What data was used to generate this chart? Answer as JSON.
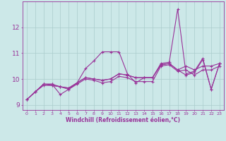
{
  "xlabel": "Windchill (Refroidissement éolien,°C)",
  "background_color": "#cce8e8",
  "grid_color": "#aacccc",
  "line_color": "#993399",
  "xlim": [
    -0.5,
    23.5
  ],
  "ylim": [
    8.8,
    13.0
  ],
  "xticks": [
    0,
    1,
    2,
    3,
    4,
    5,
    6,
    7,
    8,
    9,
    10,
    11,
    12,
    13,
    14,
    15,
    16,
    17,
    18,
    19,
    20,
    21,
    22,
    23
  ],
  "yticks": [
    9,
    10,
    11,
    12
  ],
  "series": [
    [
      9.2,
      9.5,
      9.8,
      9.8,
      9.4,
      9.6,
      9.85,
      10.4,
      10.7,
      11.05,
      11.05,
      11.05,
      10.2,
      9.85,
      10.05,
      10.05,
      10.6,
      10.65,
      12.7,
      10.2,
      10.3,
      10.8,
      9.6,
      10.6
    ],
    [
      9.2,
      9.5,
      9.8,
      9.8,
      9.7,
      9.65,
      9.85,
      10.05,
      10.0,
      9.95,
      10.0,
      10.2,
      10.15,
      10.05,
      10.05,
      10.05,
      10.55,
      10.6,
      10.35,
      10.15,
      10.25,
      10.75,
      9.6,
      10.6
    ],
    [
      9.2,
      9.5,
      9.8,
      9.75,
      9.7,
      9.65,
      9.85,
      10.05,
      10.0,
      9.95,
      10.0,
      10.2,
      10.15,
      10.05,
      10.05,
      10.05,
      10.55,
      10.6,
      10.35,
      10.5,
      10.35,
      10.5,
      10.5,
      10.6
    ],
    [
      9.2,
      9.5,
      9.75,
      9.75,
      9.7,
      9.6,
      9.8,
      10.0,
      9.95,
      9.85,
      9.9,
      10.1,
      10.05,
      9.9,
      9.9,
      9.9,
      10.5,
      10.55,
      10.3,
      10.35,
      10.15,
      10.35,
      10.35,
      10.5
    ]
  ]
}
